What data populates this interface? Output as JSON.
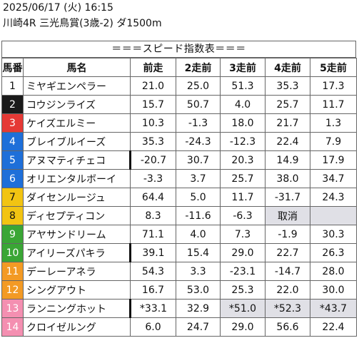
{
  "header": {
    "line1": "2025/06/17 (火) 16:15",
    "line2": "川崎4R 三光鳥賞(3歳-2) ダ1500m",
    "title": "＝＝＝スピード指数表＝＝＝"
  },
  "columns": [
    "馬番",
    "馬名",
    "前走",
    "2走前",
    "3走前",
    "4走前",
    "5走前"
  ],
  "rows": [
    {
      "num": "1",
      "name": "ミヤギエンペラー",
      "vals": [
        "21.0",
        "25.0",
        "51.3",
        "35.3",
        "17.3"
      ],
      "bg": "#ffffff",
      "fg": "#111111"
    },
    {
      "num": "2",
      "name": "コウジンライズ",
      "vals": [
        "15.7",
        "50.7",
        "4.0",
        "25.7",
        "11.7"
      ],
      "bg": "#1a1a1a",
      "fg": "#ffffff"
    },
    {
      "num": "3",
      "name": "ケイズエルミー",
      "vals": [
        "10.3",
        "-1.3",
        "18.0",
        "21.7",
        "1.3"
      ],
      "bg": "#e53935",
      "fg": "#ffffff"
    },
    {
      "num": "4",
      "name": "ブレイブルイーズ",
      "vals": [
        "35.3",
        "-24.3",
        "-12.3",
        "22.4",
        "7.9"
      ],
      "bg": "#1e6fd9",
      "fg": "#ffffff"
    },
    {
      "num": "5",
      "name": "アヌマティチェコ",
      "vals": [
        "-20.7",
        "30.7",
        "20.3",
        "14.9",
        "17.9"
      ],
      "bg": "#1e6fd9",
      "fg": "#ffffff"
    },
    {
      "num": "6",
      "name": "オリエンタルボーイ",
      "vals": [
        "-3.3",
        "3.7",
        "25.7",
        "38.0",
        "34.7"
      ],
      "bg": "#1e6fd9",
      "fg": "#ffffff"
    },
    {
      "num": "7",
      "name": "ダイセンルージュ",
      "vals": [
        "64.4",
        "5.0",
        "11.7",
        "-31.7",
        "24.3"
      ],
      "bg": "#f2c412",
      "fg": "#111111"
    },
    {
      "num": "8",
      "name": "ディセプティコン",
      "vals": [
        "8.3",
        "-11.6",
        "-6.3",
        "取消",
        ""
      ],
      "bg": "#f2c412",
      "fg": "#111111"
    },
    {
      "num": "9",
      "name": "アヤサンドリーム",
      "vals": [
        "71.1",
        "4.0",
        "7.3",
        "-1.9",
        "30.3"
      ],
      "bg": "#3aa635",
      "fg": "#ffffff"
    },
    {
      "num": "10",
      "name": "アイリーズパキラ",
      "vals": [
        "39.1",
        "15.4",
        "29.0",
        "22.7",
        "26.3"
      ],
      "bg": "#3aa635",
      "fg": "#ffffff"
    },
    {
      "num": "11",
      "name": "デーレーアネラ",
      "vals": [
        "54.3",
        "3.3",
        "-23.1",
        "-14.7",
        "28.0"
      ],
      "bg": "#f39a24",
      "fg": "#ffffff"
    },
    {
      "num": "12",
      "name": "シングアウト",
      "vals": [
        "16.7",
        "53.0",
        "25.3",
        "22.0",
        "30.0"
      ],
      "bg": "#f39a24",
      "fg": "#ffffff"
    },
    {
      "num": "13",
      "name": "ランニングホット",
      "vals": [
        "*33.1",
        "32.9",
        "*51.0",
        "*52.3",
        "*43.7"
      ],
      "bg": "#f48fb1",
      "fg": "#ffffff"
    },
    {
      "num": "14",
      "name": "クロイゼルング",
      "vals": [
        "6.0",
        "24.7",
        "29.0",
        "56.6",
        "22.4"
      ],
      "bg": "#f48fb1",
      "fg": "#ffffff"
    }
  ],
  "gray_cells": [
    [
      7,
      3
    ],
    [
      7,
      4
    ],
    [
      12,
      2
    ],
    [
      12,
      3
    ],
    [
      12,
      4
    ]
  ],
  "mark_rows": [
    4,
    9,
    12
  ]
}
